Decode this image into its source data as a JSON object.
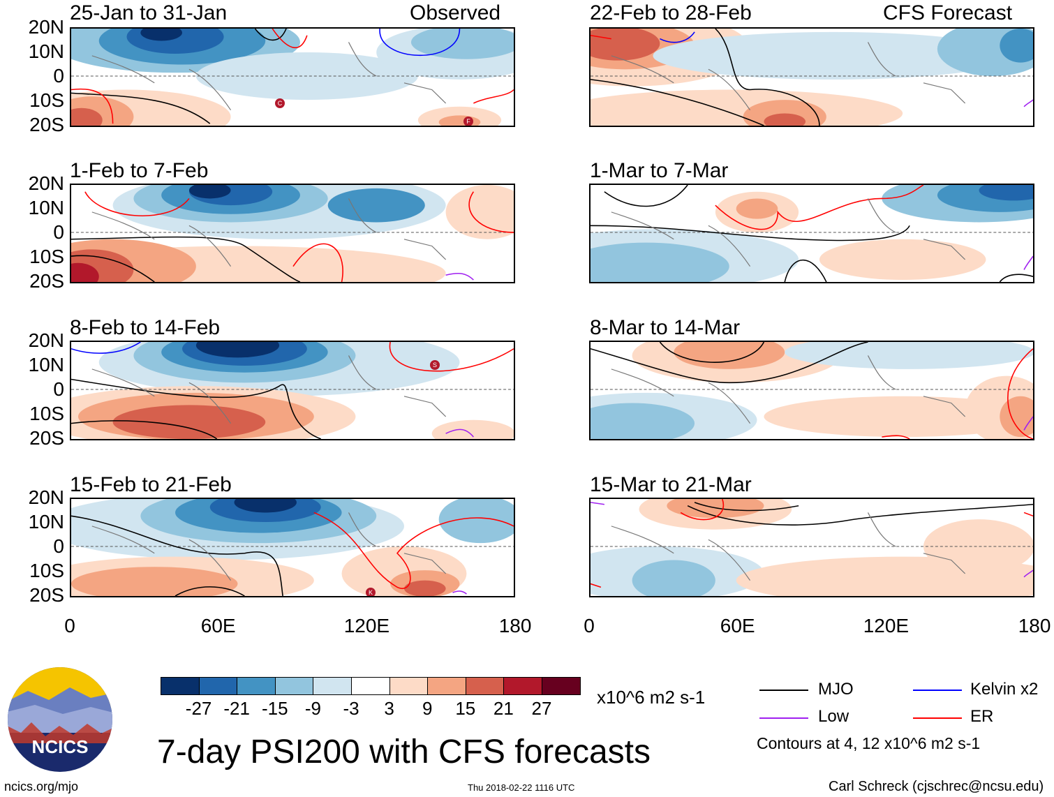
{
  "labels": {
    "observed": "Observed",
    "forecast": "CFS Forecast"
  },
  "panels_left": [
    {
      "title": "25-Jan to 31-Jan"
    },
    {
      "title": "1-Feb to 7-Feb"
    },
    {
      "title": "8-Feb to 14-Feb"
    },
    {
      "title": "15-Feb to 21-Feb"
    }
  ],
  "panels_right": [
    {
      "title": "22-Feb to 28-Feb"
    },
    {
      "title": "1-Mar to 7-Mar"
    },
    {
      "title": "8-Mar to 14-Mar"
    },
    {
      "title": "15-Mar to 21-Mar"
    }
  ],
  "lat_ticks": [
    "20N",
    "10N",
    "0",
    "10S",
    "20S"
  ],
  "lon_ticks": [
    "0",
    "60E",
    "120E",
    "180"
  ],
  "storm_markers": [
    {
      "panel": "25-Jan to 31-Jan",
      "letter": "C"
    },
    {
      "panel": "25-Jan to 31-Jan",
      "letter": "F"
    },
    {
      "panel": "8-Feb to 14-Feb",
      "letter": "S"
    },
    {
      "panel": "15-Feb to 21-Feb",
      "letter": "K"
    }
  ],
  "colorbar": {
    "colors": [
      "#08306b",
      "#2166ac",
      "#4393c3",
      "#92c5de",
      "#d1e5f0",
      "#ffffff",
      "#fddbc7",
      "#f4a582",
      "#d6604d",
      "#b2182b",
      "#67001f"
    ],
    "labels": [
      "-27",
      "-21",
      "-15",
      "-9",
      "-3",
      "3",
      "9",
      "15",
      "21",
      "27"
    ],
    "units": "x10^6 m2 s-1"
  },
  "legend": {
    "items": [
      {
        "label": "MJO",
        "color": "#000000"
      },
      {
        "label": "Kelvin x2",
        "color": "#0000ff"
      },
      {
        "label": "Low",
        "color": "#a020f0"
      },
      {
        "label": "ER",
        "color": "#ff0000"
      }
    ],
    "contours_note": "Contours at 4, 12 x10^6 m2 s-1"
  },
  "main_title": "7-day PSI200 with CFS forecasts",
  "logo_text": "NCICS",
  "footer": {
    "url": "ncics.org/mjo",
    "timestamp": "Thu 2018-02-22 1116 UTC",
    "credit": "Carl Schreck (cjschrec@ncsu.edu)"
  }
}
